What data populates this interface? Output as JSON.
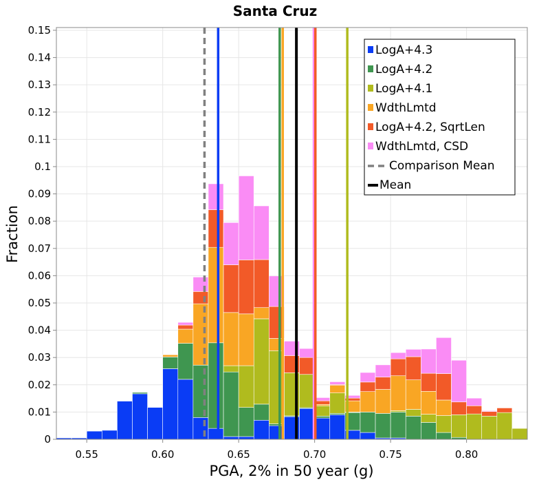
{
  "chart_data": {
    "type": "bar",
    "stacked": true,
    "title": "Santa Cruz",
    "xlabel": "PGA, 2% in 50 year (g)",
    "ylabel": "Fraction",
    "xlim": [
      0.53,
      0.84
    ],
    "ylim": [
      0,
      0.151
    ],
    "x_ticks": [
      0.55,
      0.6,
      0.65,
      0.7,
      0.75,
      0.8
    ],
    "x_tick_labels": [
      "0.55",
      "0.60",
      "0.65",
      "0.70",
      "0.75",
      "0.80"
    ],
    "y_ticks": [
      0,
      0.01,
      0.02,
      0.03,
      0.04,
      0.05,
      0.06,
      0.07,
      0.08,
      0.09,
      0.1,
      0.11,
      0.12,
      0.13,
      0.14,
      0.15
    ],
    "y_tick_labels": [
      "0",
      "0.01",
      "0.02",
      "0.03",
      "0.04",
      "0.05",
      "0.06",
      "0.07",
      "0.08",
      "0.09",
      "0.1",
      "0.11",
      "0.12",
      "0.13",
      "0.14",
      "0.15"
    ],
    "grid": true,
    "legend_position": "top-right",
    "bin_width": 0.01,
    "bin_centers": [
      0.535,
      0.545,
      0.555,
      0.565,
      0.575,
      0.585,
      0.595,
      0.605,
      0.615,
      0.625,
      0.635,
      0.645,
      0.655,
      0.665,
      0.675,
      0.685,
      0.695,
      0.705,
      0.715,
      0.725,
      0.735,
      0.745,
      0.755,
      0.765,
      0.775,
      0.785,
      0.795,
      0.805,
      0.815,
      0.825,
      0.835
    ],
    "series": [
      {
        "name": "LogA+4.3",
        "color": "#0a3cf5",
        "values": [
          0.0005,
          0.0005,
          0.003,
          0.0033,
          0.014,
          0.0167,
          0.0117,
          0.0259,
          0.022,
          0.008,
          0.004,
          0.001,
          0.001,
          0.007,
          0.005,
          0.0083,
          0.0113,
          0.0078,
          0.009,
          0.0033,
          0.0025,
          0.0005,
          0.0005,
          0,
          0,
          0,
          0,
          0,
          0,
          0,
          0
        ]
      },
      {
        "name": "LogA+4.2",
        "color": "#3f9650",
        "values": [
          0,
          0,
          0,
          0,
          0,
          0.0005,
          0,
          0.0043,
          0.0132,
          0.0192,
          0.0314,
          0.0237,
          0.0107,
          0.0059,
          0.0007,
          0.0003,
          0.0003,
          0.0007,
          0.0005,
          0.0065,
          0.0075,
          0.009,
          0.0095,
          0.0085,
          0.0062,
          0.0025,
          0.0007,
          0,
          0,
          0,
          0
        ]
      },
      {
        "name": "LogA+4.1",
        "color": "#b0bb1e",
        "values": [
          0,
          0,
          0,
          0,
          0,
          0,
          0,
          0,
          0,
          0,
          0,
          0.0023,
          0.0153,
          0.0313,
          0.0268,
          0.0158,
          0.0122,
          0.0038,
          0.0075,
          0.0002,
          0,
          0,
          0.0005,
          0.0025,
          0.003,
          0.0062,
          0.0083,
          0.0093,
          0.0085,
          0.0098,
          0.004
        ]
      },
      {
        "name": "WdthLmtd",
        "color": "#f9a624",
        "values": [
          0,
          0,
          0,
          0,
          0,
          0,
          0,
          0.0008,
          0.0052,
          0.0225,
          0.035,
          0.0195,
          0.019,
          0.0041,
          0.0045,
          0,
          0,
          0.0005,
          0.0028,
          0.0041,
          0.0075,
          0.0088,
          0.0128,
          0.0108,
          0.0084,
          0.0057,
          0,
          0,
          0,
          0,
          0
        ]
      },
      {
        "name": "LogA+4.2, SqrtLen",
        "color": "#f25a28",
        "values": [
          0,
          0,
          0,
          0,
          0,
          0,
          0,
          0,
          0.0015,
          0.0045,
          0.0138,
          0.0175,
          0.0198,
          0.0176,
          0.0117,
          0.0063,
          0.0062,
          0.0013,
          0.0003,
          0.001,
          0.0035,
          0.0045,
          0.0062,
          0.0085,
          0.0066,
          0.0097,
          0.0047,
          0.003,
          0.0017,
          0.0017,
          0
        ]
      },
      {
        "name": "WdthLmtd, CSD",
        "color": "#fa8cf5",
        "values": [
          0,
          0,
          0,
          0,
          0,
          0,
          0,
          0,
          0.001,
          0.0053,
          0.0095,
          0.0155,
          0.0308,
          0.0197,
          0.0112,
          0.0053,
          0.0033,
          0.0012,
          0.001,
          0.001,
          0.0035,
          0.0045,
          0.0023,
          0.0027,
          0.0089,
          0.0132,
          0.0153,
          0.0028,
          0.0003,
          0,
          0
        ]
      }
    ],
    "vertical_lines": [
      {
        "name": "LogA+4.3",
        "x": 0.6365,
        "color": "#0a3cf5",
        "style": "solid"
      },
      {
        "name": "LogA+4.2",
        "x": 0.677,
        "color": "#3f9650",
        "style": "solid"
      },
      {
        "name": "WdthLmtd",
        "x": 0.679,
        "color": "#f9a624",
        "style": "solid"
      },
      {
        "name": "WdthLmtd, CSD",
        "x": 0.6995,
        "color": "#fa8cf5",
        "style": "solid"
      },
      {
        "name": "LogA+4.2, SqrtLen",
        "x": 0.7005,
        "color": "#f25a28",
        "style": "solid"
      },
      {
        "name": "LogA+4.1",
        "x": 0.7215,
        "color": "#b0bb1e",
        "style": "solid"
      },
      {
        "name": "Comparison Mean",
        "x": 0.6275,
        "color": "#808080",
        "style": "dashed"
      },
      {
        "name": "Mean",
        "x": 0.688,
        "color": "#000000",
        "style": "solid"
      }
    ],
    "legend": [
      {
        "label": "LogA+4.3",
        "color": "#0a3cf5",
        "kind": "box"
      },
      {
        "label": "LogA+4.2",
        "color": "#3f9650",
        "kind": "box"
      },
      {
        "label": "LogA+4.1",
        "color": "#b0bb1e",
        "kind": "box"
      },
      {
        "label": "WdthLmtd",
        "color": "#f9a624",
        "kind": "box"
      },
      {
        "label": "LogA+4.2, SqrtLen",
        "color": "#f25a28",
        "kind": "box"
      },
      {
        "label": "WdthLmtd, CSD",
        "color": "#fa8cf5",
        "kind": "box"
      },
      {
        "label": "Comparison Mean",
        "color": "#808080",
        "kind": "dashed-line"
      },
      {
        "label": "Mean",
        "color": "#000000",
        "kind": "line"
      }
    ]
  }
}
